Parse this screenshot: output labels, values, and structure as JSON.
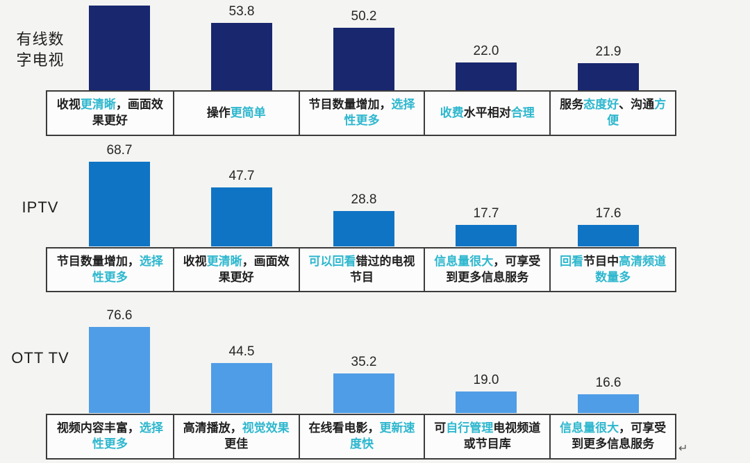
{
  "colors": {
    "group_bar_colors": [
      "#18276e",
      "#1074c4",
      "#4f9de6"
    ],
    "accent_text": "#2eb7ce",
    "dark_text": "#1e1e1e",
    "box_border": "#3b3b3b",
    "box_background": "#fcfcfc"
  },
  "misc": {
    "paragraph_mark": "↵"
  },
  "chart_data": {
    "type": "bar",
    "orientation": "vertical",
    "title": "",
    "xlabel": "",
    "ylabel": "",
    "notes": "Three grouped bar charts; each bar has a reason label in a bordered cell below. First bar of first group has its numeric label cropped off the top of the image (value estimated from bar height).",
    "groups": [
      {
        "name": "有线数字电视",
        "name_lines": [
          "有线数",
          "字电视"
        ],
        "bar_color": "#18276e",
        "bars": [
          {
            "value": 67.8,
            "value_label": "",
            "reason": [
              {
                "t": "收视",
                "c": "dark"
              },
              {
                "t": "更清晰",
                "c": "accent"
              },
              {
                "t": "，画面效果更好",
                "c": "dark"
              }
            ]
          },
          {
            "value": 53.8,
            "value_label": "53.8",
            "reason": [
              {
                "t": "操作",
                "c": "dark"
              },
              {
                "t": "更简单",
                "c": "accent"
              }
            ]
          },
          {
            "value": 50.2,
            "value_label": "50.2",
            "reason": [
              {
                "t": "节目数量增加，",
                "c": "dark"
              },
              {
                "t": "选择性更多",
                "c": "accent"
              }
            ]
          },
          {
            "value": 22.0,
            "value_label": "22.0",
            "reason": [
              {
                "t": "收费",
                "c": "accent"
              },
              {
                "t": "水平相对",
                "c": "dark"
              },
              {
                "t": "合理",
                "c": "accent"
              }
            ]
          },
          {
            "value": 21.9,
            "value_label": "21.9",
            "reason": [
              {
                "t": "服务",
                "c": "dark"
              },
              {
                "t": "态度好",
                "c": "accent"
              },
              {
                "t": "、沟通",
                "c": "dark"
              },
              {
                "t": "方便",
                "c": "accent"
              }
            ]
          }
        ]
      },
      {
        "name": "IPTV",
        "name_lines": [
          "IPTV"
        ],
        "bar_color": "#1074c4",
        "bars": [
          {
            "value": 68.7,
            "value_label": "68.7",
            "reason": [
              {
                "t": "节目数量增加，",
                "c": "dark"
              },
              {
                "t": "选择性更多",
                "c": "accent"
              }
            ]
          },
          {
            "value": 47.7,
            "value_label": "47.7",
            "reason": [
              {
                "t": "收视",
                "c": "dark"
              },
              {
                "t": "更清晰",
                "c": "accent"
              },
              {
                "t": "，画面效果更好",
                "c": "dark"
              }
            ]
          },
          {
            "value": 28.8,
            "value_label": "28.8",
            "reason": [
              {
                "t": "可以回看",
                "c": "accent"
              },
              {
                "t": "错过的电视节目",
                "c": "dark"
              }
            ]
          },
          {
            "value": 17.7,
            "value_label": "17.7",
            "reason": [
              {
                "t": "信息量很大",
                "c": "accent"
              },
              {
                "t": "，可享受到更多信息服务",
                "c": "dark"
              }
            ]
          },
          {
            "value": 17.6,
            "value_label": "17.6",
            "reason": [
              {
                "t": "回看",
                "c": "accent"
              },
              {
                "t": "节目中",
                "c": "dark"
              },
              {
                "t": "高清频道数量多",
                "c": "accent"
              }
            ]
          }
        ]
      },
      {
        "name": "OTT TV",
        "name_lines": [
          "OTT TV"
        ],
        "bar_color": "#4f9de6",
        "bars": [
          {
            "value": 76.6,
            "value_label": "76.6",
            "reason": [
              {
                "t": "视频内容丰富，",
                "c": "dark"
              },
              {
                "t": "选择性更多",
                "c": "accent"
              }
            ]
          },
          {
            "value": 44.5,
            "value_label": "44.5",
            "reason": [
              {
                "t": "高清播放，",
                "c": "dark"
              },
              {
                "t": "视觉效果",
                "c": "accent"
              },
              {
                "t": "更佳",
                "c": "dark"
              }
            ]
          },
          {
            "value": 35.2,
            "value_label": "35.2",
            "reason": [
              {
                "t": "在线看电影，",
                "c": "dark"
              },
              {
                "t": "更新速度快",
                "c": "accent"
              }
            ]
          },
          {
            "value": 19.0,
            "value_label": "19.0",
            "reason": [
              {
                "t": "可",
                "c": "dark"
              },
              {
                "t": "自行管理",
                "c": "accent"
              },
              {
                "t": "电视频道或节目库",
                "c": "dark"
              }
            ]
          },
          {
            "value": 16.6,
            "value_label": "16.6",
            "reason": [
              {
                "t": "信息量很大",
                "c": "accent"
              },
              {
                "t": "，可享受到更多信息服务",
                "c": "dark"
              }
            ]
          }
        ]
      }
    ]
  }
}
